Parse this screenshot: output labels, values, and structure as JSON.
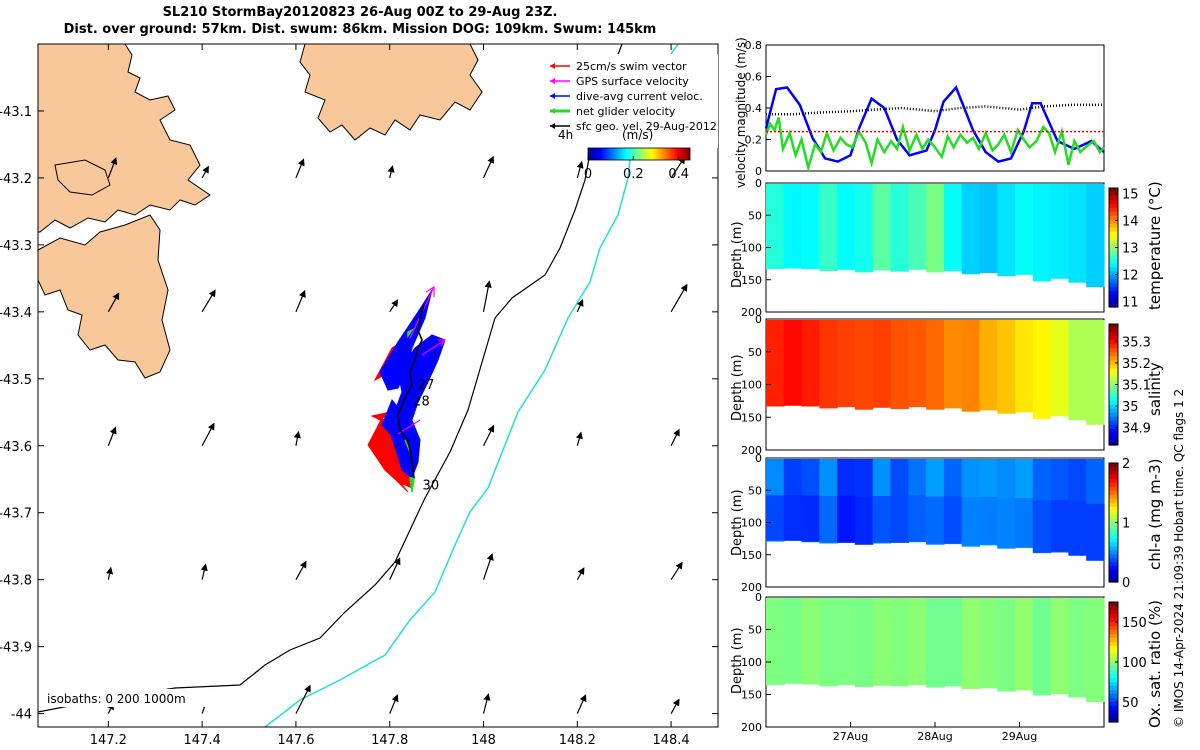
{
  "title": {
    "line1": "SL210 StormBay20120823 26-Aug 00Z to 29-Aug 23Z.",
    "line2": "Dist. over ground: 57km. Dist. swum: 86km. Mission DOG: 109km. Swum: 145km"
  },
  "credit": "© IMOS 14-Apr-2024 21:09:39 Hobart time. QC flags 1  2",
  "colors": {
    "land": "#F8C79A",
    "isobath_200": "#000000",
    "isobath_1000": "#22DDDD",
    "swim_vector": "#FF0000",
    "gps_velocity": "#FF00FF",
    "dive_avg_current": "#0000FF",
    "net_glider_velocity": "#22DD22",
    "sfc_geo_velocity": "#000000",
    "section_fill": "#00C83A"
  },
  "map": {
    "legend": [
      {
        "label": "25cm/s swim vector",
        "color": "#FF0000"
      },
      {
        "label": "GPS surface velocity",
        "color": "#FF00FF"
      },
      {
        "label": "dive-avg current veloc.",
        "color": "#0000FF"
      },
      {
        "label": "net glider velocity",
        "color": "#22DD22"
      },
      {
        "label": "sfc geo. vel. 29-Aug-2012",
        "color": "#000000"
      }
    ],
    "interval_label": "4h",
    "colorbar": {
      "label": "(m/s)",
      "ticks": [
        "0",
        "0.2",
        "0.4"
      ],
      "range": [
        0,
        0.45
      ]
    },
    "isobath_label": "isobaths: 0   200  1000m",
    "day_labels": [
      {
        "day": "27",
        "lon": 147.86,
        "lat": -43.515
      },
      {
        "day": "28",
        "lon": 147.85,
        "lat": -43.54
      },
      {
        "day": "30",
        "lon": 147.87,
        "lat": -43.665
      }
    ],
    "x_axis": {
      "range": [
        147.05,
        148.5
      ],
      "ticks": [
        "147.2",
        "147.4",
        "147.6",
        "147.8",
        "148",
        "148.2",
        "148.4"
      ],
      "values": [
        147.2,
        147.4,
        147.6,
        147.8,
        148.0,
        148.2,
        148.4
      ]
    },
    "y_axis": {
      "range": [
        -44.02,
        -43.0
      ],
      "ticks": [
        "-43.1",
        "-43.2",
        "-43.3",
        "-43.4",
        "-43.5",
        "-43.6",
        "-43.7",
        "-43.8",
        "-43.9",
        "-44"
      ],
      "values": [
        -43.1,
        -43.2,
        -43.3,
        -43.4,
        -43.5,
        -43.6,
        -43.7,
        -43.8,
        -43.9,
        -44.0
      ]
    }
  },
  "chart_data": [
    {
      "type": "line",
      "ylabel": "velocity magnitude (m/s)",
      "ylim": [
        0,
        0.8
      ],
      "yticks": [
        "0",
        "0.2",
        "0.4",
        "0.6",
        "0.8"
      ],
      "ytick_values": [
        0,
        0.2,
        0.4,
        0.6,
        0.8
      ],
      "xlim_days": [
        26,
        30
      ],
      "series": [
        {
          "name": "dive-avg current",
          "color": "#0000FF",
          "x": [
            26.0,
            26.12,
            26.25,
            26.4,
            26.55,
            26.7,
            26.85,
            27.0,
            27.1,
            27.25,
            27.4,
            27.55,
            27.7,
            27.9,
            28.0,
            28.1,
            28.25,
            28.45,
            28.6,
            28.75,
            28.9,
            29.05,
            29.15,
            29.25,
            29.45,
            29.65,
            29.85,
            30.0
          ],
          "y": [
            0.27,
            0.52,
            0.53,
            0.42,
            0.21,
            0.08,
            0.06,
            0.1,
            0.27,
            0.46,
            0.4,
            0.2,
            0.1,
            0.13,
            0.26,
            0.44,
            0.53,
            0.26,
            0.12,
            0.06,
            0.08,
            0.25,
            0.43,
            0.43,
            0.19,
            0.14,
            0.19,
            0.12
          ]
        },
        {
          "name": "net glider velocity",
          "color": "#22DD22",
          "x": [
            26.0,
            26.05,
            26.1,
            26.15,
            26.2,
            26.28,
            26.35,
            26.42,
            26.5,
            26.58,
            26.65,
            26.72,
            26.8,
            26.88,
            26.95,
            27.02,
            27.1,
            27.18,
            27.25,
            27.32,
            27.4,
            27.48,
            27.55,
            27.62,
            27.7,
            27.78,
            27.85,
            27.92,
            28.0,
            28.08,
            28.15,
            28.22,
            28.3,
            28.38,
            28.45,
            28.52,
            28.6,
            28.68,
            28.75,
            28.82,
            28.9,
            28.98,
            29.05,
            29.12,
            29.2,
            29.28,
            29.35,
            29.42,
            29.5,
            29.58,
            29.65,
            29.72,
            29.8,
            29.88,
            29.95,
            30.0
          ],
          "y": [
            0.23,
            0.3,
            0.26,
            0.34,
            0.14,
            0.24,
            0.1,
            0.2,
            0.02,
            0.17,
            0.12,
            0.24,
            0.13,
            0.21,
            0.17,
            0.15,
            0.25,
            0.18,
            0.05,
            0.2,
            0.12,
            0.19,
            0.14,
            0.28,
            0.13,
            0.23,
            0.14,
            0.2,
            0.15,
            0.09,
            0.22,
            0.15,
            0.23,
            0.18,
            0.21,
            0.14,
            0.24,
            0.13,
            0.17,
            0.23,
            0.12,
            0.26,
            0.2,
            0.15,
            0.19,
            0.28,
            0.24,
            0.12,
            0.25,
            0.04,
            0.19,
            0.12,
            0.16,
            0.19,
            0.12,
            0.15
          ]
        },
        {
          "name": "25cm/s swim",
          "color": "#FF0000",
          "x": [
            26.0,
            30.0
          ],
          "y": [
            0.25,
            0.25
          ]
        },
        {
          "name": "sfc geo. vel.",
          "color": "#000000",
          "x": [
            26.0,
            26.3,
            26.6,
            27.0,
            27.3,
            27.6,
            28.0,
            28.3,
            28.6,
            29.0,
            29.3,
            29.6,
            30.0
          ],
          "y": [
            0.36,
            0.36,
            0.37,
            0.38,
            0.39,
            0.4,
            0.38,
            0.4,
            0.41,
            0.39,
            0.41,
            0.42,
            0.42
          ]
        }
      ]
    },
    {
      "type": "heatmap",
      "variable": "temperature",
      "clabel": "temperature (°C)",
      "ylabel": "Depth (m)",
      "ylim": [
        200,
        0
      ],
      "yticks": [
        "0",
        "50",
        "100",
        "150",
        "200"
      ],
      "ytick_values": [
        0,
        50,
        100,
        150,
        200
      ],
      "clim": [
        10.8,
        15.2
      ],
      "cticks": [
        "11",
        "12",
        "13",
        "14",
        "15"
      ],
      "ctick_values": [
        11,
        12,
        13,
        14,
        15
      ],
      "bottom_depth": [
        132,
        131,
        132,
        135,
        133,
        137,
        134,
        136,
        133,
        137,
        135,
        140,
        138,
        143,
        141,
        151,
        147,
        153,
        160
      ],
      "values": [
        12.6,
        12.4,
        12.5,
        12.7,
        12.5,
        12.6,
        12.8,
        12.6,
        12.7,
        12.9,
        12.5,
        12.3,
        12.2,
        12.3,
        12.5,
        12.4,
        12.4,
        12.3,
        12.2
      ]
    },
    {
      "type": "heatmap",
      "variable": "salinity",
      "clabel": "salinity",
      "ylabel": "Depth (m)",
      "ylim": [
        200,
        0
      ],
      "yticks": [
        "0",
        "50",
        "100",
        "150",
        "200"
      ],
      "ytick_values": [
        0,
        50,
        100,
        150,
        200
      ],
      "clim": [
        34.82,
        35.38
      ],
      "cticks": [
        "34.9",
        "35",
        "35.1",
        "35.2",
        "35.3"
      ],
      "ctick_values": [
        34.9,
        35.0,
        35.1,
        35.2,
        35.3
      ],
      "bottom_depth": [
        132,
        131,
        132,
        135,
        133,
        137,
        134,
        136,
        133,
        137,
        135,
        140,
        138,
        143,
        141,
        151,
        147,
        153,
        160
      ],
      "values": [
        35.3,
        35.3,
        35.29,
        35.29,
        35.28,
        35.28,
        35.27,
        35.27,
        35.26,
        35.25,
        35.24,
        35.24,
        35.22,
        35.2,
        35.19,
        35.17,
        35.15,
        35.13,
        35.12
      ]
    },
    {
      "type": "heatmap",
      "variable": "chl-a",
      "clabel": "chl-a (mg m-3)",
      "ylabel": "Depth (m)",
      "ylim": [
        200,
        0
      ],
      "yticks": [
        "0",
        "50",
        "100",
        "150",
        "200"
      ],
      "ytick_values": [
        0,
        50,
        100,
        150,
        200
      ],
      "clim": [
        0,
        2
      ],
      "cticks": [
        "0",
        "1",
        "2"
      ],
      "ctick_values": [
        0,
        1,
        2
      ],
      "bottom_depth": [
        128,
        127,
        129,
        131,
        130,
        133,
        131,
        130,
        129,
        133,
        132,
        136,
        134,
        139,
        138,
        146,
        145,
        150,
        158
      ],
      "values": [
        0.48,
        0.44,
        0.46,
        0.5,
        0.42,
        0.44,
        0.47,
        0.5,
        0.52,
        0.55,
        0.5,
        0.58,
        0.62,
        0.6,
        0.58,
        0.55,
        0.52,
        0.5,
        0.48
      ]
    },
    {
      "type": "heatmap",
      "variable": "oxygen saturation",
      "clabel": "Ox. sat. ratio (%)",
      "ylabel": "Depth (m)",
      "ylim": [
        200,
        0
      ],
      "yticks": [
        "0",
        "50",
        "100",
        "150",
        "200"
      ],
      "ytick_values": [
        0,
        50,
        100,
        150,
        200
      ],
      "clim": [
        25,
        175
      ],
      "cticks": [
        "50",
        "100",
        "150"
      ],
      "ctick_values": [
        50,
        100,
        150
      ],
      "xticks": [
        "27Aug",
        "28Aug",
        "29Aug"
      ],
      "xtick_values": [
        27,
        28,
        29
      ],
      "bottom_depth": [
        134,
        132,
        133,
        136,
        134,
        137,
        135,
        136,
        134,
        138,
        136,
        140,
        139,
        144,
        142,
        150,
        148,
        153,
        160
      ],
      "values": [
        100,
        100,
        100,
        100,
        100,
        100,
        100,
        100,
        100,
        100,
        100,
        100,
        100,
        100,
        100,
        100,
        100,
        100,
        100
      ]
    }
  ]
}
